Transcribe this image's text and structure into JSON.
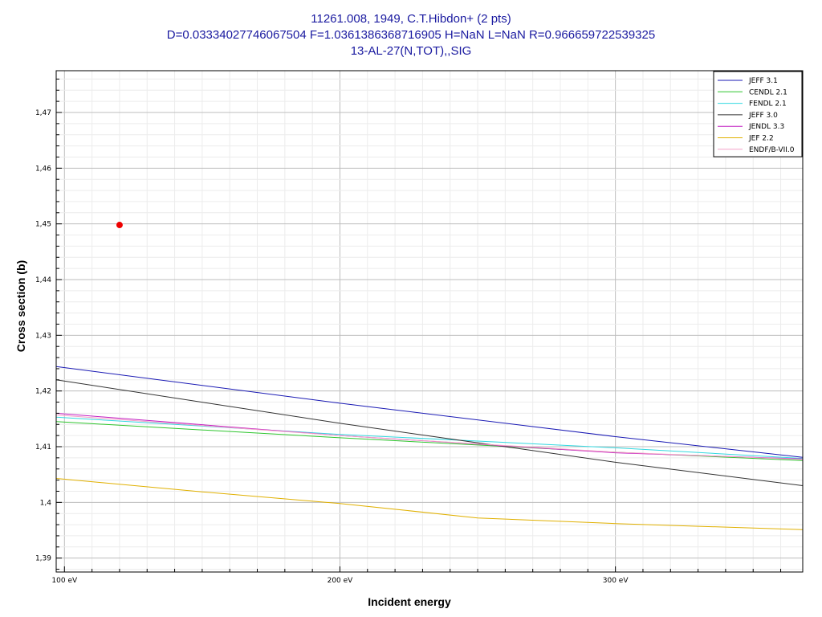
{
  "header": {
    "line1": "11261.008, 1949, C.T.Hibdon+ (2 pts)",
    "line2": "D=0.03334027746067504 F=1.0361386368716905 H=NaN L=NaN R=0.966659722539325",
    "line3": "13-AL-27(N,TOT),,SIG"
  },
  "chart_data": {
    "type": "line",
    "title": "11261.008, 1949, C.T.Hibdon+ (2 pts)",
    "xlabel": "Incident energy",
    "ylabel": "Cross section (b)",
    "xlim": [
      97,
      368
    ],
    "ylim": [
      1.3875,
      1.4775
    ],
    "x_ticks": [
      {
        "value": 100,
        "label": "100 eV"
      },
      {
        "value": 200,
        "label": "200 eV"
      },
      {
        "value": 300,
        "label": "300 eV"
      }
    ],
    "y_ticks": [
      {
        "value": 1.39,
        "label": "1,39"
      },
      {
        "value": 1.4,
        "label": "1,4"
      },
      {
        "value": 1.41,
        "label": "1,41"
      },
      {
        "value": 1.42,
        "label": "1,42"
      },
      {
        "value": 1.43,
        "label": "1,43"
      },
      {
        "value": 1.44,
        "label": "1,44"
      },
      {
        "value": 1.45,
        "label": "1,45"
      },
      {
        "value": 1.46,
        "label": "1,46"
      },
      {
        "value": 1.47,
        "label": "1,47"
      }
    ],
    "grid": true,
    "legend_position": "top-right",
    "series": [
      {
        "name": "JEFF 3.1",
        "color": "#1a1ab4",
        "x": [
          97,
          200,
          300,
          368
        ],
        "y": [
          1.4244,
          1.4178,
          1.4118,
          1.4081
        ]
      },
      {
        "name": "CENDL 2.1",
        "color": "#2ec52e",
        "x": [
          97,
          200,
          300,
          368
        ],
        "y": [
          1.4145,
          1.4116,
          1.409,
          1.4075
        ]
      },
      {
        "name": "FENDL 2.1",
        "color": "#33d8e0",
        "x": [
          97,
          200,
          300,
          368
        ],
        "y": [
          1.4153,
          1.4122,
          1.4098,
          1.4079
        ]
      },
      {
        "name": "JEFF 3.0",
        "color": "#333333",
        "x": [
          97,
          200,
          300,
          368
        ],
        "y": [
          1.422,
          1.4142,
          1.4072,
          1.403
        ]
      },
      {
        "name": "JENDL 3.3",
        "color": "#c21ec2",
        "x": [
          97,
          200,
          300,
          368
        ],
        "y": [
          1.416,
          1.412,
          1.4089,
          1.4078
        ]
      },
      {
        "name": "JEF 2.2",
        "color": "#e0b000",
        "x": [
          97,
          150,
          200,
          250,
          300,
          368
        ],
        "y": [
          1.4043,
          1.4019,
          1.3998,
          1.3972,
          1.3962,
          1.3951
        ]
      },
      {
        "name": "ENDF/B-VII.0",
        "color": "#f4a0c8",
        "x": [
          97,
          200,
          300,
          368
        ],
        "y": [
          1.4157,
          1.412,
          1.409,
          1.4077
        ]
      }
    ],
    "points": [
      {
        "x": 120,
        "y": 1.4498,
        "color": "#ee0000"
      }
    ]
  }
}
